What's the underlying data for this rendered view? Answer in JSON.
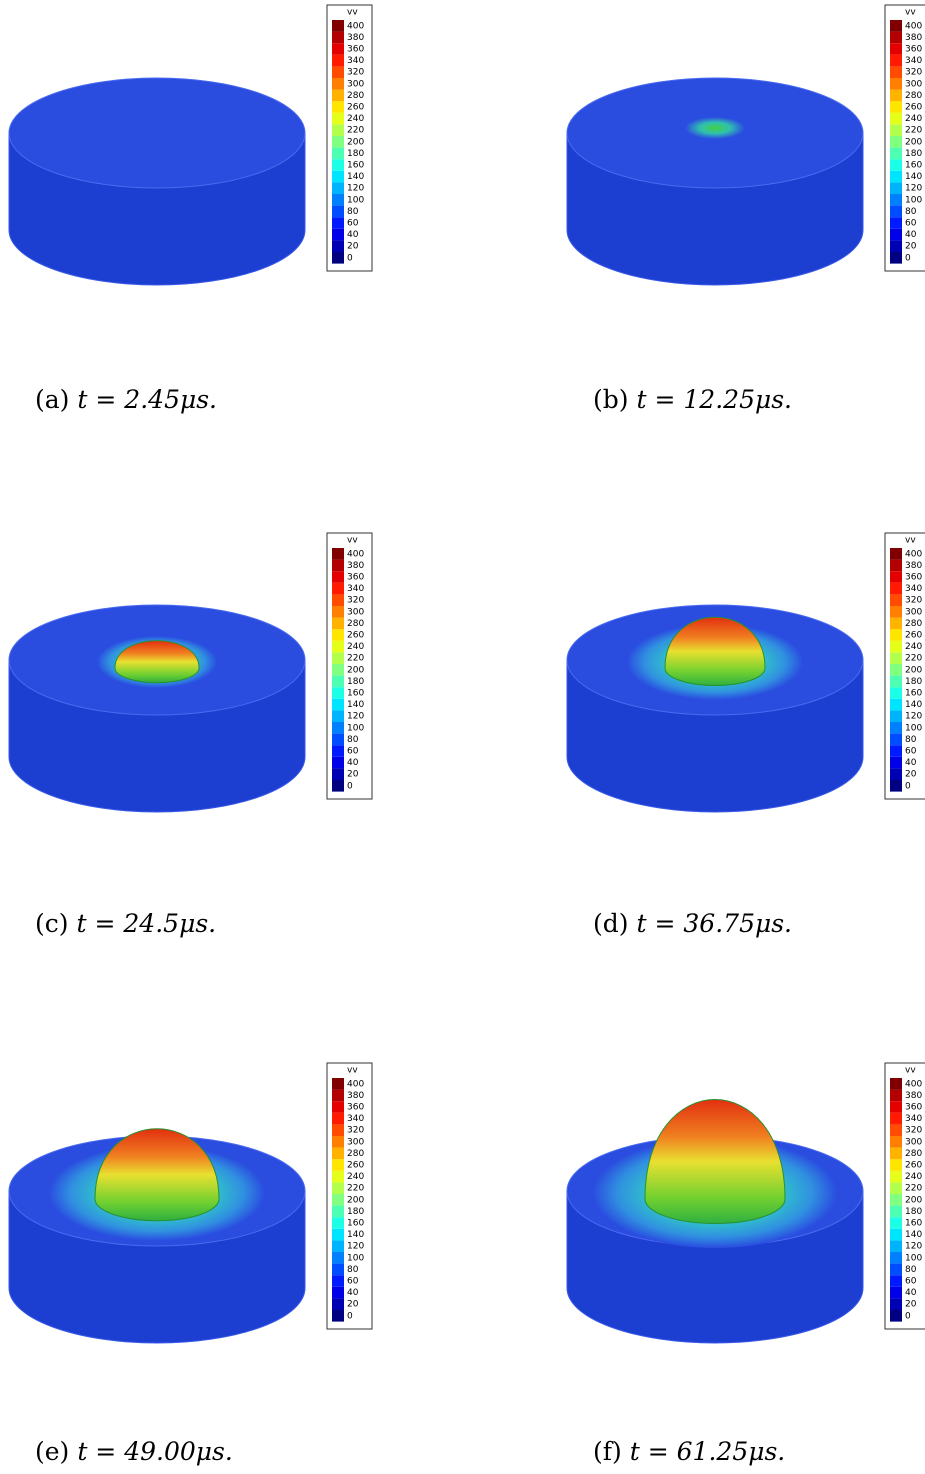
{
  "colorbar": {
    "title": "vv",
    "ticks": [
      0,
      20,
      40,
      60,
      80,
      100,
      120,
      140,
      160,
      180,
      200,
      220,
      240,
      260,
      280,
      300,
      320,
      340,
      360,
      380,
      400
    ]
  },
  "panels": [
    {
      "label": "(a)",
      "expr": "t = 2.45μs."
    },
    {
      "label": "(b)",
      "expr": "t = 12.25μs."
    },
    {
      "label": "(c)",
      "expr": "t = 24.5μs."
    },
    {
      "label": "(d)",
      "expr": "t = 36.75μs."
    },
    {
      "label": "(e)",
      "expr": "t = 49.00μs."
    },
    {
      "label": "(f)",
      "expr": "t = 61.25μs."
    }
  ]
}
